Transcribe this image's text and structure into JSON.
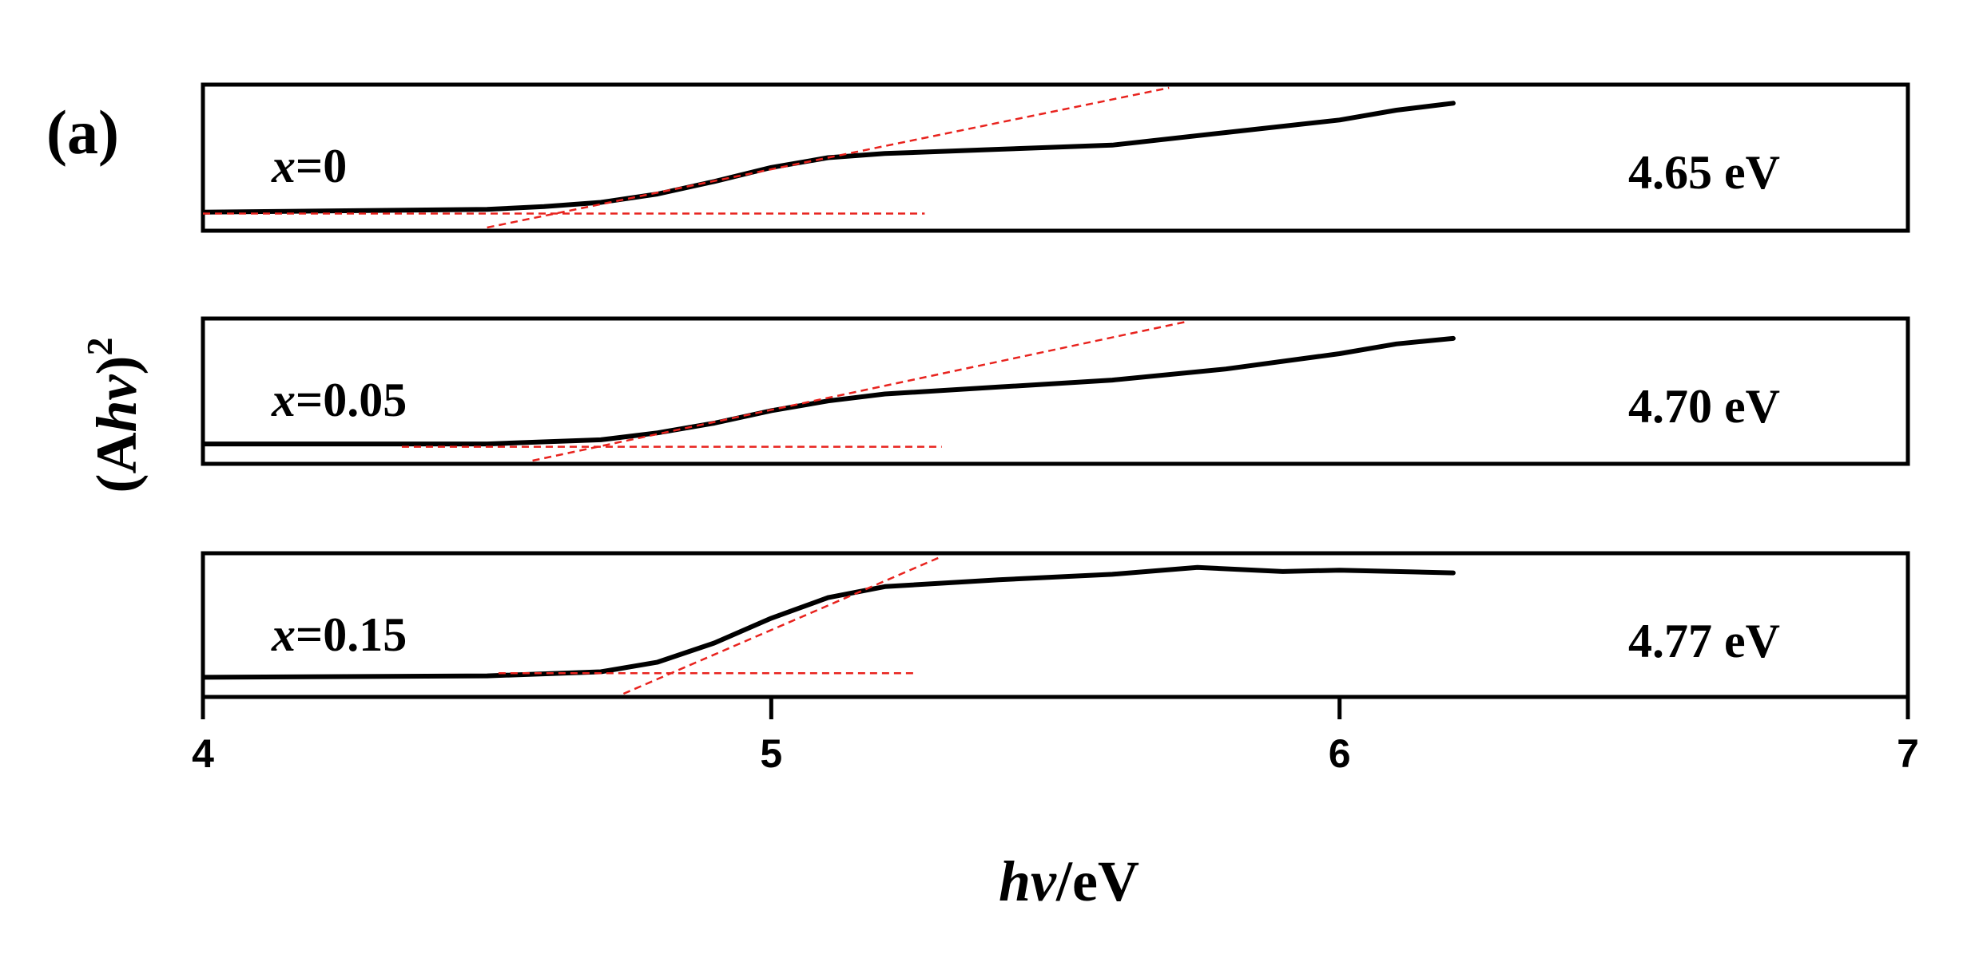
{
  "panel_label": "(a)",
  "chart_data": {
    "type": "line",
    "xlabel_italic": "hν",
    "xlabel_suffix": "/eV",
    "ylabel_prefix": "(A",
    "ylabel_italic": "hν",
    "ylabel_suffix": ")",
    "ylabel_exponent": "2",
    "xlim": [
      4,
      7
    ],
    "x_ticks": [
      "4",
      "5",
      "6",
      "7"
    ],
    "grid": false,
    "panels": [
      {
        "name": "x=0",
        "label_var": "x",
        "label_rest": "=0",
        "band_gap_label": "4.65 eV",
        "ylim": [
          0,
          1
        ],
        "line_color": "#000000",
        "fit_color": "#e8231e",
        "data": [
          [
            4.0,
            0.11
          ],
          [
            4.5,
            0.13
          ],
          [
            4.6,
            0.15
          ],
          [
            4.7,
            0.18
          ],
          [
            4.8,
            0.24
          ],
          [
            4.9,
            0.33
          ],
          [
            5.0,
            0.43
          ],
          [
            5.1,
            0.5
          ],
          [
            5.2,
            0.53
          ],
          [
            5.4,
            0.56
          ],
          [
            5.6,
            0.59
          ],
          [
            5.8,
            0.68
          ],
          [
            6.0,
            0.77
          ],
          [
            6.1,
            0.84
          ],
          [
            6.2,
            0.89
          ]
        ],
        "fit_line": [
          [
            4.5,
            0.0
          ],
          [
            5.7,
            1.0
          ]
        ],
        "baseline": [
          [
            4.0,
            0.1
          ],
          [
            5.27,
            0.1
          ]
        ]
      },
      {
        "name": "x=0.05",
        "label_var": "x",
        "label_rest": "=0.05",
        "band_gap_label": "4.70 eV",
        "ylim": [
          0,
          1
        ],
        "line_color": "#000000",
        "fit_color": "#e8231e",
        "data": [
          [
            4.0,
            0.12
          ],
          [
            4.5,
            0.12
          ],
          [
            4.7,
            0.15
          ],
          [
            4.8,
            0.2
          ],
          [
            4.9,
            0.27
          ],
          [
            5.0,
            0.36
          ],
          [
            5.1,
            0.43
          ],
          [
            5.2,
            0.48
          ],
          [
            5.4,
            0.53
          ],
          [
            5.6,
            0.58
          ],
          [
            5.8,
            0.66
          ],
          [
            6.0,
            0.77
          ],
          [
            6.1,
            0.84
          ],
          [
            6.2,
            0.88
          ]
        ],
        "fit_line": [
          [
            4.58,
            0.0
          ],
          [
            5.73,
            1.0
          ]
        ],
        "baseline": [
          [
            4.35,
            0.1
          ],
          [
            5.3,
            0.1
          ]
        ]
      },
      {
        "name": "x=0.15",
        "label_var": "x",
        "label_rest": "=0.15",
        "band_gap_label": "4.77 eV",
        "ylim": [
          0,
          1
        ],
        "line_color": "#000000",
        "fit_color": "#e8231e",
        "data": [
          [
            4.0,
            0.12
          ],
          [
            4.5,
            0.13
          ],
          [
            4.7,
            0.16
          ],
          [
            4.8,
            0.23
          ],
          [
            4.9,
            0.37
          ],
          [
            5.0,
            0.55
          ],
          [
            5.1,
            0.7
          ],
          [
            5.2,
            0.78
          ],
          [
            5.4,
            0.83
          ],
          [
            5.6,
            0.87
          ],
          [
            5.75,
            0.92
          ],
          [
            5.9,
            0.89
          ],
          [
            6.0,
            0.9
          ],
          [
            6.1,
            0.89
          ],
          [
            6.2,
            0.88
          ]
        ],
        "fit_line": [
          [
            4.74,
            0.0
          ],
          [
            5.3,
            1.0
          ]
        ],
        "baseline": [
          [
            4.52,
            0.15
          ],
          [
            5.25,
            0.15
          ]
        ]
      }
    ]
  }
}
